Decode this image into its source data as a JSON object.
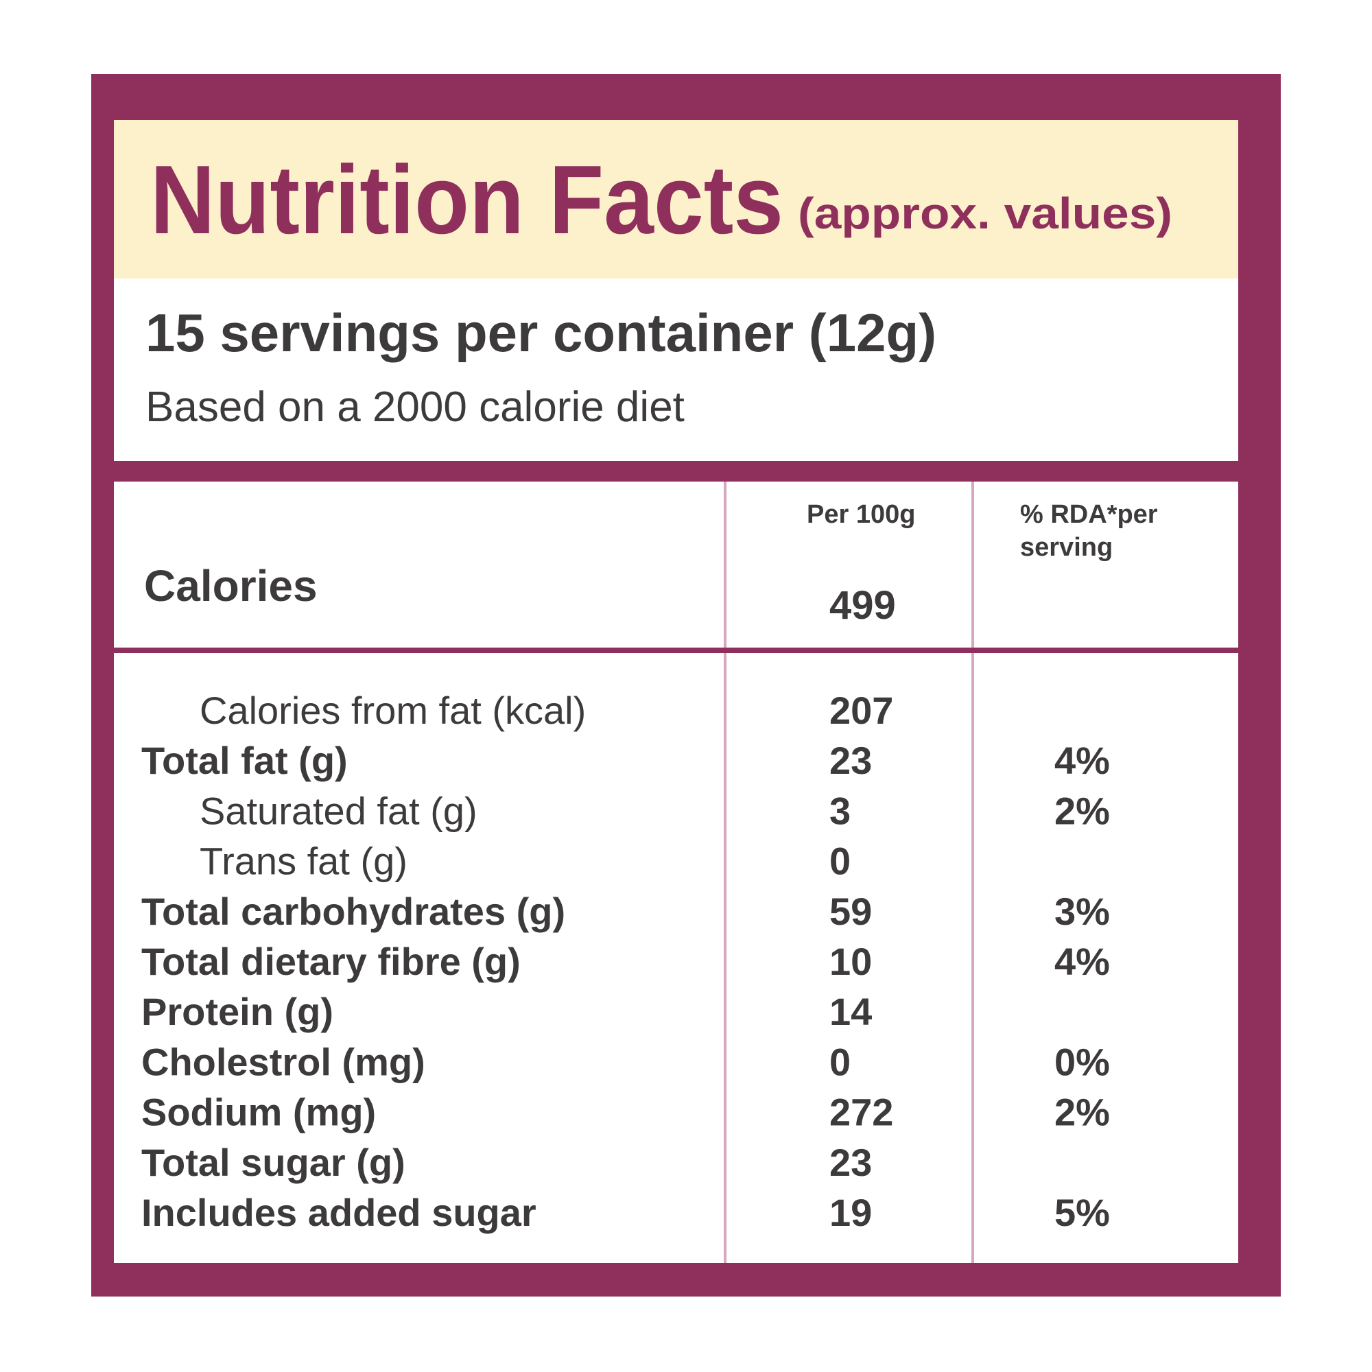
{
  "header": {
    "title": "Nutrition Facts",
    "subtitle": "(approx. values)"
  },
  "servings": "15 servings per container (12g)",
  "basis": "Based on a 2000 calorie diet",
  "table": {
    "headers": [
      "Per 100g",
      [
        "% RDA*per",
        "serving"
      ]
    ],
    "calories": {
      "label": "Calories",
      "per_100g": 499
    },
    "rows": [
      {
        "label": "Calories from fat (kcal)",
        "per_100g": 207,
        "rda": null
      },
      {
        "label": "Total fat (g)",
        "per_100g": 23,
        "rda": "4%"
      },
      {
        "label": "Saturated fat (g)",
        "per_100g": 3,
        "rda": "2%"
      },
      {
        "label": "Trans fat (g)",
        "per_100g": 0,
        "rda": null
      },
      {
        "label": "Total carbohydrates (g)",
        "per_100g": 59,
        "rda": "3%"
      },
      {
        "label": "Total dietary fibre (g)",
        "per_100g": 10,
        "rda": "4%"
      },
      {
        "label": "Protein (g)",
        "per_100g": 14,
        "rda": null
      },
      {
        "label": "Cholestrol (mg)",
        "per_100g": 0,
        "rda": "0%"
      },
      {
        "label": "Sodium (mg)",
        "per_100g": 272,
        "rda": "2%"
      },
      {
        "label": "Total sugar (g)",
        "per_100g": 23,
        "rda": null
      },
      {
        "label": "Includes added sugar",
        "per_100g": 19,
        "rda": "5%"
      }
    ]
  }
}
